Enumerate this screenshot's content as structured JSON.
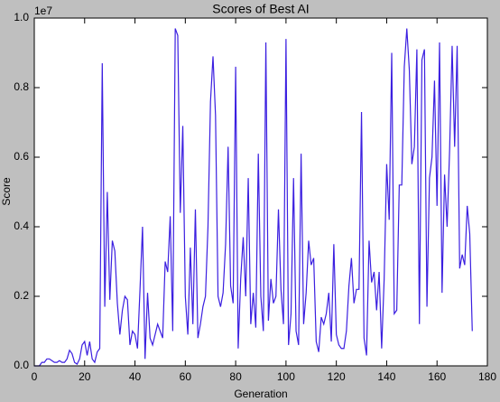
{
  "chart_data": {
    "type": "line",
    "title": "Scores of Best AI",
    "x_label": "Generation",
    "y_label": "Score",
    "y_offset_label": "1e7",
    "x": [
      0,
      1,
      2,
      3,
      4,
      5,
      6,
      7,
      8,
      9,
      10,
      11,
      12,
      13,
      14,
      15,
      16,
      17,
      18,
      19,
      20,
      21,
      22,
      23,
      24,
      25,
      26,
      27,
      28,
      29,
      30,
      31,
      32,
      33,
      34,
      35,
      36,
      37,
      38,
      39,
      40,
      41,
      42,
      43,
      44,
      45,
      46,
      47,
      48,
      49,
      50,
      51,
      52,
      53,
      54,
      55,
      56,
      57,
      58,
      59,
      60,
      61,
      62,
      63,
      64,
      65,
      66,
      67,
      68,
      69,
      70,
      71,
      72,
      73,
      74,
      75,
      76,
      77,
      78,
      79,
      80,
      81,
      82,
      83,
      84,
      85,
      86,
      87,
      88,
      89,
      90,
      91,
      92,
      93,
      94,
      95,
      96,
      97,
      98,
      99,
      100,
      101,
      102,
      103,
      104,
      105,
      106,
      107,
      108,
      109,
      110,
      111,
      112,
      113,
      114,
      115,
      116,
      117,
      118,
      119,
      120,
      121,
      122,
      123,
      124,
      125,
      126,
      127,
      128,
      129,
      130,
      131,
      132,
      133,
      134,
      135,
      136,
      137,
      138,
      139,
      140,
      141,
      142,
      143,
      144,
      145,
      146,
      147,
      148,
      149,
      150,
      151,
      152,
      153,
      154,
      155,
      156,
      157,
      158,
      159,
      160,
      161,
      162,
      163,
      164,
      165,
      166,
      167,
      168,
      169,
      170,
      171,
      172,
      173,
      174
    ],
    "series": [
      {
        "name": "Score",
        "color": "#3b1fe0",
        "values": [
          0,
          0,
          0,
          0.01,
          0.01,
          0.02,
          0.02,
          0.015,
          0.01,
          0.01,
          0.015,
          0.01,
          0.01,
          0.02,
          0.045,
          0.035,
          0.01,
          0.005,
          0.02,
          0.06,
          0.07,
          0.03,
          0.07,
          0.02,
          0.01,
          0.04,
          0.05,
          0.87,
          0.17,
          0.5,
          0.19,
          0.36,
          0.33,
          0.18,
          0.09,
          0.16,
          0.2,
          0.19,
          0.06,
          0.1,
          0.09,
          0.05,
          0.22,
          0.4,
          0.02,
          0.21,
          0.08,
          0.06,
          0.09,
          0.12,
          0.1,
          0.08,
          0.3,
          0.27,
          0.43,
          0.1,
          0.97,
          0.95,
          0.44,
          0.69,
          0.2,
          0.09,
          0.34,
          0.12,
          0.45,
          0.08,
          0.12,
          0.17,
          0.2,
          0.4,
          0.76,
          0.89,
          0.72,
          0.2,
          0.17,
          0.21,
          0.35,
          0.63,
          0.23,
          0.18,
          0.86,
          0.05,
          0.25,
          0.37,
          0.2,
          0.54,
          0.12,
          0.21,
          0.11,
          0.61,
          0.2,
          0.1,
          0.93,
          0.13,
          0.25,
          0.18,
          0.2,
          0.45,
          0.22,
          0.12,
          0.94,
          0.06,
          0.15,
          0.54,
          0.1,
          0.06,
          0.61,
          0.12,
          0.21,
          0.36,
          0.29,
          0.31,
          0.07,
          0.04,
          0.14,
          0.12,
          0.15,
          0.21,
          0.07,
          0.35,
          0.09,
          0.06,
          0.05,
          0.05,
          0.1,
          0.23,
          0.31,
          0.18,
          0.22,
          0.22,
          0.73,
          0.08,
          0.03,
          0.36,
          0.24,
          0.27,
          0.16,
          0.27,
          0.05,
          0.25,
          0.58,
          0.42,
          0.9,
          0.15,
          0.16,
          0.52,
          0.52,
          0.86,
          0.97,
          0.85,
          0.58,
          0.63,
          0.91,
          0.12,
          0.88,
          0.91,
          0.17,
          0.54,
          0.6,
          0.82,
          0.46,
          0.93,
          0.21,
          0.55,
          0.4,
          0.62,
          0.92,
          0.63,
          0.92,
          0.28,
          0.32,
          0.29,
          0.46,
          0.38,
          0.1
        ]
      }
    ],
    "xlim": [
      0,
      180
    ],
    "xticks": [
      0,
      20,
      40,
      60,
      80,
      100,
      120,
      140,
      160,
      180
    ],
    "ylim": [
      0,
      1
    ],
    "yticks": [
      {
        "value": 0,
        "label": "0.0"
      },
      0.2,
      0.4,
      0.6,
      0.8,
      {
        "value": 1,
        "label": "1.0"
      }
    ],
    "grid": false
  }
}
